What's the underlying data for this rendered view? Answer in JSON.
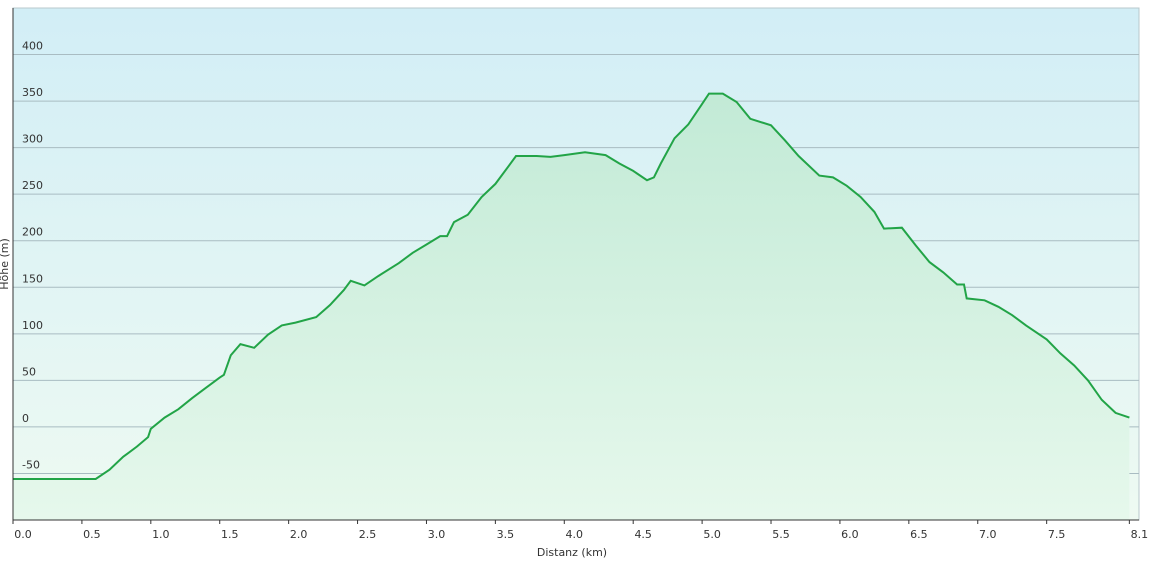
{
  "chart_data": {
    "type": "area",
    "x_label": "Distanz  (km)",
    "y_label": "Höhe (m)",
    "xlim": [
      0,
      8.17
    ],
    "ylim": [
      -100,
      450
    ],
    "xticks": [
      {
        "value": 0,
        "label": "0.0"
      },
      0.5,
      {
        "value": 1,
        "label": "1.0"
      },
      1.5,
      {
        "value": 2,
        "label": "2.0"
      },
      2.5,
      {
        "value": 3,
        "label": "3.0"
      },
      3.5,
      {
        "value": 4,
        "label": "4.0"
      },
      4.5,
      {
        "value": 5,
        "label": "5.0"
      },
      5.5,
      {
        "value": 6,
        "label": "6.0"
      },
      6.5,
      {
        "value": 7,
        "label": "7.0"
      },
      7.5,
      8.1
    ],
    "yticks": [
      -50,
      0,
      50,
      100,
      150,
      200,
      250,
      300,
      350,
      400
    ],
    "grid": true,
    "series": [
      {
        "color": "#22a447",
        "x": [
          0,
          0.6,
          0.7,
          0.8,
          0.9,
          0.98,
          1.0,
          1.1,
          1.2,
          1.3,
          1.4,
          1.5,
          1.53,
          1.58,
          1.65,
          1.75,
          1.85,
          1.95,
          2.05,
          2.2,
          2.3,
          2.4,
          2.45,
          2.55,
          2.65,
          2.8,
          2.9,
          3.0,
          3.1,
          3.15,
          3.2,
          3.3,
          3.4,
          3.5,
          3.6,
          3.65,
          3.8,
          3.9,
          4.0,
          4.15,
          4.3,
          4.4,
          4.5,
          4.6,
          4.65,
          4.7,
          4.8,
          4.9,
          5.0,
          5.05,
          5.15,
          5.25,
          5.35,
          5.5,
          5.6,
          5.7,
          5.85,
          5.95,
          6.05,
          6.15,
          6.25,
          6.32,
          6.45,
          6.55,
          6.65,
          6.75,
          6.85,
          6.9,
          6.92,
          7.05,
          7.15,
          7.25,
          7.35,
          7.5,
          7.6,
          7.7,
          7.8,
          7.9,
          8.0,
          8.1
        ],
        "values": [
          -56,
          -56,
          -46,
          -32,
          -21,
          -11,
          -2,
          10,
          19,
          31,
          42,
          53,
          56,
          77,
          89,
          85,
          99,
          109,
          112,
          118,
          131,
          147,
          157,
          152,
          162,
          176,
          187,
          196,
          205,
          205,
          220,
          228,
          247,
          261,
          281,
          291,
          291,
          290,
          292,
          295,
          292,
          283,
          275,
          265,
          268,
          283,
          310,
          325,
          347,
          358,
          358,
          349,
          331,
          324,
          308,
          291,
          270,
          268,
          259,
          247,
          231,
          213,
          214,
          195,
          177,
          166,
          153,
          153,
          138,
          136,
          129,
          120,
          109,
          94,
          79,
          66,
          50,
          29,
          15,
          10
        ]
      }
    ]
  }
}
